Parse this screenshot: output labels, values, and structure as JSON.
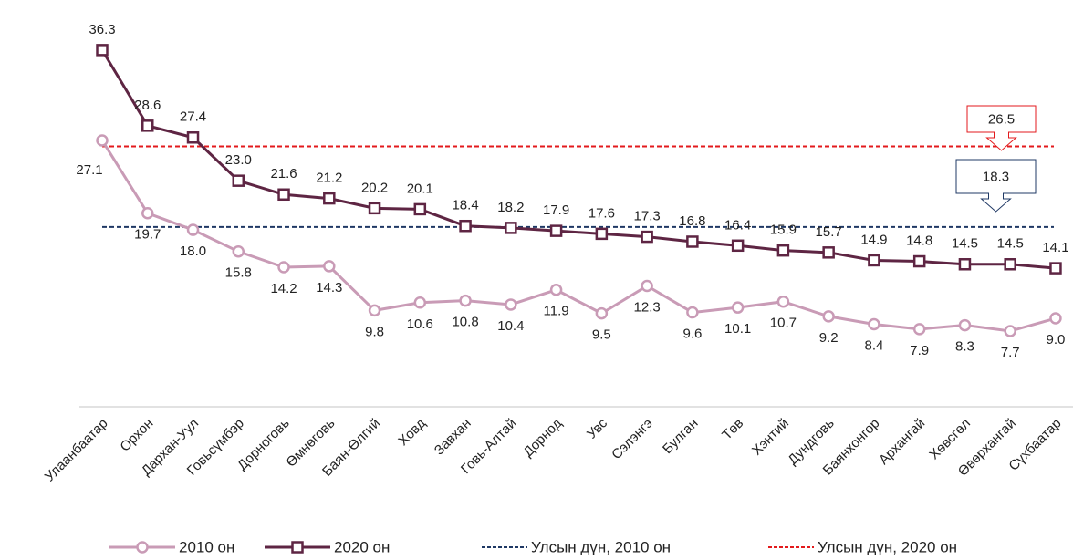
{
  "chart_data": {
    "type": "line",
    "categories": [
      "Улаанбаатар",
      "Орхон",
      "Дархан-Уул",
      "Говьсүмбэр",
      "Дорноговь",
      "Өмнөговь",
      "Баян-Өлгий",
      "Ховд",
      "Завхан",
      "Говь-Алтай",
      "Дорнод",
      "Увс",
      "Сэлэнгэ",
      "Булган",
      "Төв",
      "Хэнтий",
      "Дундговь",
      "Баянхонгор",
      "Архангай",
      "Хөвсгөл",
      "Өвөрхангай",
      "Сүхбаатар"
    ],
    "series": [
      {
        "name": "2010 он",
        "color": "#c99bb6",
        "marker": "circle",
        "values": [
          27.1,
          19.7,
          18,
          15.8,
          14.2,
          14.3,
          9.8,
          10.6,
          10.8,
          10.4,
          11.9,
          9.5,
          12.3,
          9.6,
          10.1,
          10.7,
          9.2,
          8.4,
          7.9,
          8.3,
          7.7,
          9
        ],
        "value_labels": [
          "27.1",
          "19.7",
          "18.0",
          "15.8",
          "14.2",
          "14.3",
          "9.8",
          "10.6",
          "10.8",
          "10.4",
          "11.9",
          "9.5",
          "12.3",
          "9.6",
          "10.1",
          "10.7",
          "9.2",
          "8.4",
          "7.9",
          "8.3",
          "7.7",
          "9.0"
        ]
      },
      {
        "name": "2020 он",
        "color": "#5e2543",
        "marker": "square",
        "values": [
          36.3,
          28.6,
          27.4,
          23,
          21.6,
          21.2,
          20.2,
          20.1,
          18.4,
          18.2,
          17.9,
          17.6,
          17.3,
          16.8,
          16.4,
          15.9,
          15.7,
          14.9,
          14.8,
          14.5,
          14.5,
          14.1
        ],
        "value_labels": [
          "36.3",
          "28.6",
          "27.4",
          "23.0",
          "21.6",
          "21.2",
          "20.2",
          "20.1",
          "18.4",
          "18.2",
          "17.9",
          "17.6",
          "17.3",
          "16.8",
          "16.4",
          "15.9",
          "15.7",
          "14.9",
          "14.8",
          "14.5",
          "14.5",
          "14.1"
        ]
      }
    ],
    "reference_lines": [
      {
        "name": "Улсын дүн, 2010 он",
        "value": 18.3,
        "color": "#1f3864"
      },
      {
        "name": "Улсын дүн, 2020 он",
        "value": 26.5,
        "color": "#e31a1c"
      }
    ],
    "ylim": [
      0,
      40
    ]
  }
}
